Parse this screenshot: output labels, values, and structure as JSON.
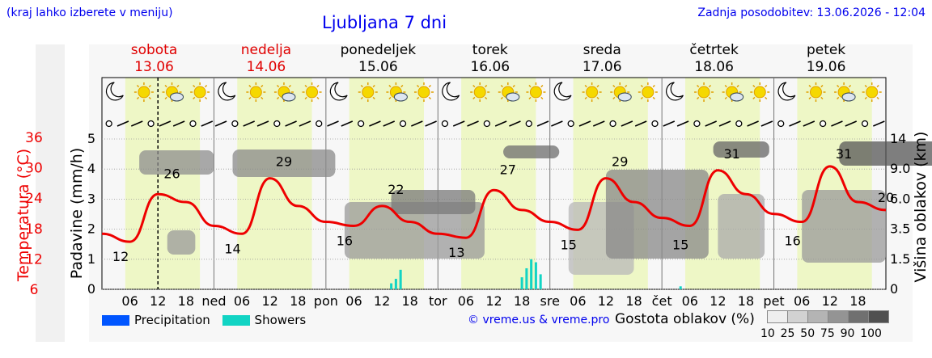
{
  "header": {
    "note": "(kraj lahko izberete v meniju)",
    "title": "Ljubljana 7 dni",
    "updated": "Zadnja posodobitev: 13.06.2026 - 12:04"
  },
  "days": [
    {
      "name": "sobota",
      "date": "13.06",
      "weekend": true
    },
    {
      "name": "nedelja",
      "date": "14.06",
      "weekend": true
    },
    {
      "name": "ponedeljek",
      "date": "15.06",
      "weekend": false
    },
    {
      "name": "torek",
      "date": "16.06",
      "weekend": false
    },
    {
      "name": "sreda",
      "date": "17.06",
      "weekend": false
    },
    {
      "name": "četrtek",
      "date": "18.06",
      "weekend": false
    },
    {
      "name": "petek",
      "date": "19.06",
      "weekend": false
    }
  ],
  "axes": {
    "precip_label": "Padavine (mm/h)",
    "temp_label": "Temperatura (°C)",
    "cloud_label": "Višina oblakov (km)",
    "precip_ticks": [
      "0",
      "1",
      "2",
      "3",
      "4",
      "5"
    ],
    "temp_ticks": [
      "6",
      "12",
      "18",
      "24",
      "30",
      "36"
    ],
    "cloud_ticks": [
      "0",
      "1.5",
      "3.5",
      "6.0",
      "9.0",
      "14"
    ],
    "day_abbr": [
      "ned",
      "pon",
      "tor",
      "sre",
      "čet",
      "pet"
    ],
    "hour_ticks": [
      "06",
      "12",
      "18"
    ]
  },
  "chart_data": {
    "type": "line",
    "title": "Ljubljana 7 dni",
    "ylabel": "Temperatura (°C)",
    "ylim": [
      0,
      42
    ],
    "series": [
      {
        "name": "Temperatura (°C)",
        "x": [
          0,
          6,
          12,
          18,
          24,
          30,
          36,
          42,
          48,
          54,
          60,
          66,
          72,
          78,
          84,
          90,
          96,
          102,
          108,
          114,
          120,
          126,
          132,
          138,
          144,
          150,
          156,
          162,
          168
        ],
        "values": [
          14,
          12,
          24,
          22,
          16,
          14,
          28,
          21,
          17,
          16,
          21,
          17,
          14,
          13,
          25,
          20,
          17,
          15,
          28,
          22,
          18,
          16,
          30,
          24,
          19,
          17,
          31,
          22,
          20
        ]
      }
    ],
    "annotations": [
      {
        "label": "12",
        "x": 4
      },
      {
        "label": "26",
        "x": 15
      },
      {
        "label": "14",
        "x": 28
      },
      {
        "label": "29",
        "x": 39
      },
      {
        "label": "16",
        "x": 52
      },
      {
        "label": "22",
        "x": 63
      },
      {
        "label": "13",
        "x": 76
      },
      {
        "label": "27",
        "x": 87
      },
      {
        "label": "15",
        "x": 100
      },
      {
        "label": "29",
        "x": 111
      },
      {
        "label": "15",
        "x": 124
      },
      {
        "label": "31",
        "x": 135
      },
      {
        "label": "16",
        "x": 148
      },
      {
        "label": "31",
        "x": 159
      },
      {
        "label": "20",
        "x": 168
      }
    ],
    "precip_ticks": [
      "0",
      "1",
      "2",
      "3",
      "4",
      "5"
    ],
    "cloud_height_ticks": [
      "0",
      "1.5",
      "3.5",
      "6.0",
      "9.0",
      "14"
    ],
    "showers_mm": [
      {
        "x": 62,
        "value": 0.2
      },
      {
        "x": 63,
        "value": 0.35
      },
      {
        "x": 64,
        "value": 0.65
      },
      {
        "x": 90,
        "value": 0.4
      },
      {
        "x": 91,
        "value": 0.7
      },
      {
        "x": 92,
        "value": 1.0
      },
      {
        "x": 93,
        "value": 0.9
      },
      {
        "x": 94,
        "value": 0.5
      },
      {
        "x": 124,
        "value": 0.1
      }
    ],
    "grid": true,
    "legend_position": "bottom"
  },
  "legend": {
    "precipitation": "Precipitation",
    "showers": "Showers",
    "precip_color": "#0055ff",
    "showers_color": "#12d4c4"
  },
  "footer": {
    "copyright": "© vreme.us & vreme.pro",
    "cloud_density_label": "Gostota oblakov (%)",
    "density_scale": [
      "10",
      "25",
      "50",
      "75",
      "90",
      "100"
    ]
  },
  "icons": [
    "moon-cloud-icon",
    "sun-icon",
    "sun-cloud-icon",
    "cloud-lightning-icon",
    "fog-icon"
  ],
  "colors": {
    "temperature": "#ee0000",
    "daylight": "#eef7c6",
    "title": "#0000ee",
    "weekend": "#e00000"
  }
}
